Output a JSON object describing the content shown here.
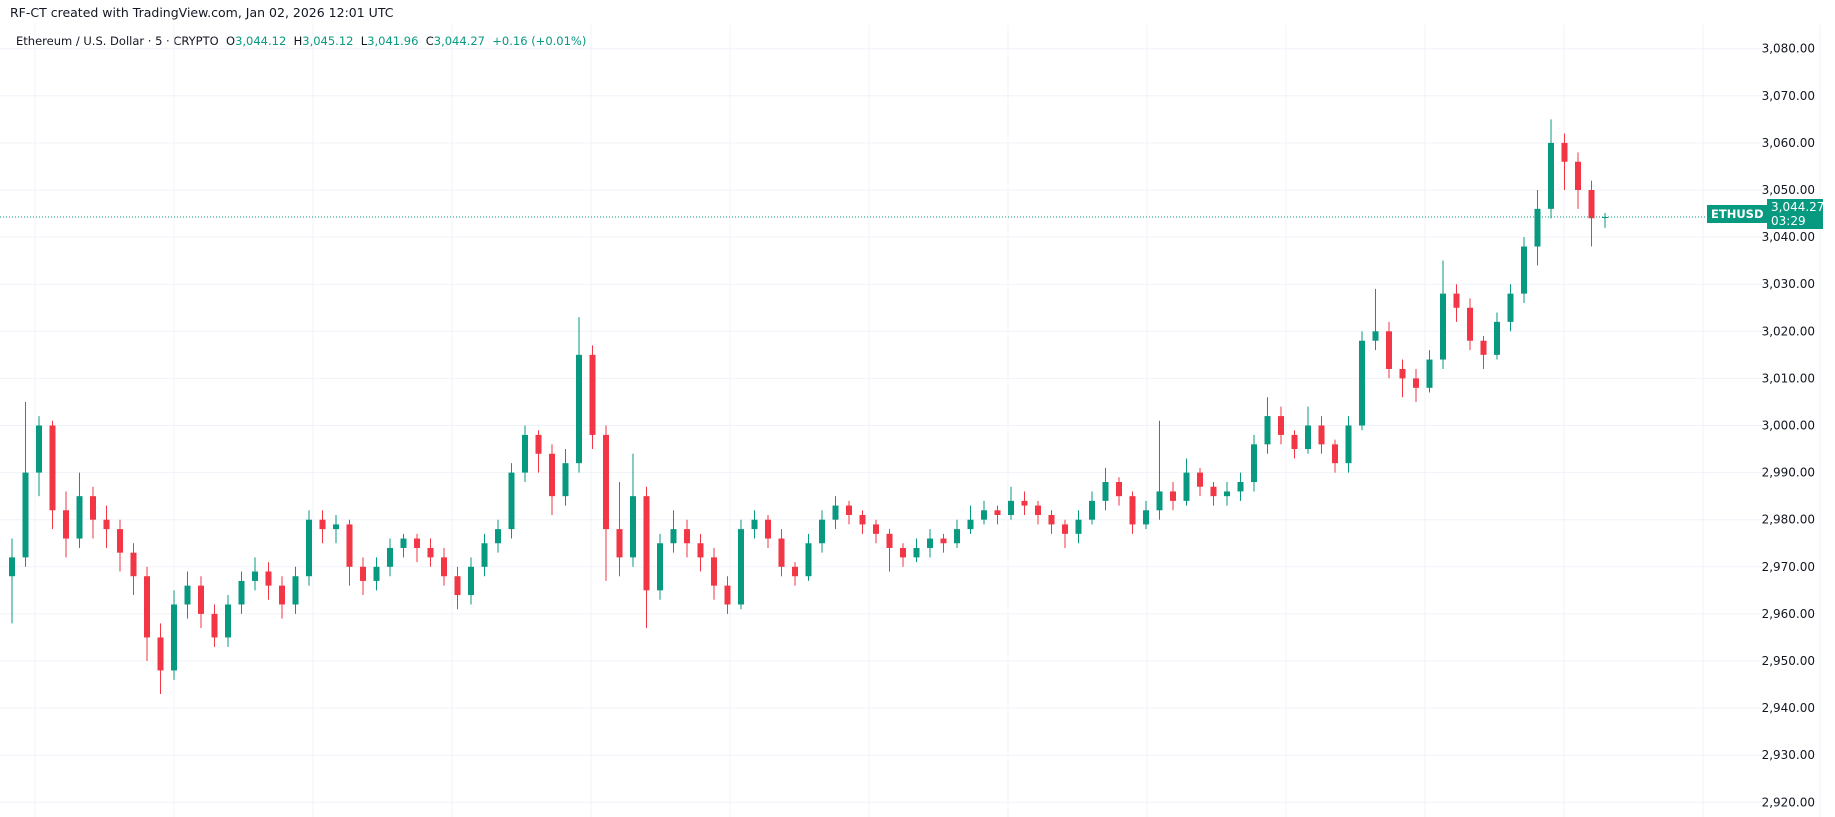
{
  "header": {
    "credit": "RF-CT created with TradingView.com, Jan 02, 2026 12:01 UTC"
  },
  "legend": {
    "symbol": "Ethereum / U.S. Dollar · 5 · CRYPTO",
    "o_label": "O",
    "o": "3,044.12",
    "h_label": "H",
    "h": "3,045.12",
    "l_label": "L",
    "l": "3,041.96",
    "c_label": "C",
    "c": "3,044.27",
    "change": "+0.16 (+0.01%)"
  },
  "price_tag": {
    "symbol": "ETHUSD",
    "price": "3,044.27",
    "countdown": "03:29"
  },
  "colors": {
    "up": "#089981",
    "down": "#f23645",
    "grid": "#f0f3fa"
  },
  "chart_data": {
    "type": "candlestick",
    "title": "Ethereum / U.S. Dollar · 5 · CRYPTO",
    "ylim": [
      2917,
      3086
    ],
    "yticks": [
      2920,
      2930,
      2940,
      2950,
      2960,
      2970,
      2980,
      2990,
      3000,
      3010,
      3020,
      3030,
      3040,
      3050,
      3060,
      3070,
      3080
    ],
    "ytick_labels": [
      "2,920.00",
      "2,930.00",
      "2,940.00",
      "2,950.00",
      "2,960.00",
      "2,970.00",
      "2,980.00",
      "2,990.00",
      "3,000.00",
      "3,010.00",
      "3,020.00",
      "3,030.00",
      "3,040.00",
      "3,050.00",
      "3,060.00",
      "3,070.00",
      "3,080.00"
    ],
    "last_price": 3044.27,
    "grid": true,
    "ohlc": [
      [
        2968,
        2976,
        2958,
        2972
      ],
      [
        2972,
        3005,
        2970,
        2990
      ],
      [
        2990,
        3002,
        2985,
        3000
      ],
      [
        3000,
        3001,
        2978,
        2982
      ],
      [
        2982,
        2986,
        2972,
        2976
      ],
      [
        2976,
        2990,
        2974,
        2985
      ],
      [
        2985,
        2987,
        2976,
        2980
      ],
      [
        2980,
        2983,
        2974,
        2978
      ],
      [
        2978,
        2980,
        2969,
        2973
      ],
      [
        2973,
        2975,
        2964,
        2968
      ],
      [
        2968,
        2970,
        2950,
        2955
      ],
      [
        2955,
        2958,
        2943,
        2948
      ],
      [
        2948,
        2965,
        2946,
        2962
      ],
      [
        2962,
        2969,
        2959,
        2966
      ],
      [
        2966,
        2968,
        2957,
        2960
      ],
      [
        2960,
        2962,
        2953,
        2955
      ],
      [
        2955,
        2964,
        2953,
        2962
      ],
      [
        2962,
        2969,
        2960,
        2967
      ],
      [
        2967,
        2972,
        2965,
        2969
      ],
      [
        2969,
        2971,
        2963,
        2966
      ],
      [
        2966,
        2968,
        2959,
        2962
      ],
      [
        2962,
        2970,
        2960,
        2968
      ],
      [
        2968,
        2982,
        2966,
        2980
      ],
      [
        2980,
        2982,
        2975,
        2978
      ],
      [
        2978,
        2981,
        2975,
        2979
      ],
      [
        2979,
        2980,
        2966,
        2970
      ],
      [
        2970,
        2972,
        2964,
        2967
      ],
      [
        2967,
        2972,
        2965,
        2970
      ],
      [
        2970,
        2976,
        2968,
        2974
      ],
      [
        2974,
        2977,
        2972,
        2976
      ],
      [
        2976,
        2977,
        2971,
        2974
      ],
      [
        2974,
        2976,
        2970,
        2972
      ],
      [
        2972,
        2974,
        2966,
        2968
      ],
      [
        2968,
        2970,
        2961,
        2964
      ],
      [
        2964,
        2972,
        2962,
        2970
      ],
      [
        2970,
        2977,
        2968,
        2975
      ],
      [
        2975,
        2980,
        2973,
        2978
      ],
      [
        2978,
        2992,
        2976,
        2990
      ],
      [
        2990,
        3000,
        2988,
        2998
      ],
      [
        2998,
        2999,
        2990,
        2994
      ],
      [
        2994,
        2996,
        2981,
        2985
      ],
      [
        2985,
        2995,
        2983,
        2992
      ],
      [
        2992,
        3023,
        2990,
        3015
      ],
      [
        3015,
        3017,
        2995,
        2998
      ],
      [
        2998,
        3000,
        2967,
        2978
      ],
      [
        2978,
        2988,
        2968,
        2972
      ],
      [
        2972,
        2994,
        2970,
        2985
      ],
      [
        2985,
        2987,
        2957,
        2965
      ],
      [
        2965,
        2977,
        2963,
        2975
      ],
      [
        2975,
        2982,
        2973,
        2978
      ],
      [
        2978,
        2980,
        2972,
        2975
      ],
      [
        2975,
        2977,
        2969,
        2972
      ],
      [
        2972,
        2974,
        2963,
        2966
      ],
      [
        2966,
        2968,
        2960,
        2962
      ],
      [
        2962,
        2980,
        2961,
        2978
      ],
      [
        2978,
        2982,
        2976,
        2980
      ],
      [
        2980,
        2981,
        2974,
        2976
      ],
      [
        2976,
        2978,
        2968,
        2970
      ],
      [
        2970,
        2971,
        2966,
        2968
      ],
      [
        2968,
        2977,
        2967,
        2975
      ],
      [
        2975,
        2982,
        2973,
        2980
      ],
      [
        2980,
        2985,
        2978,
        2983
      ],
      [
        2983,
        2984,
        2979,
        2981
      ],
      [
        2981,
        2982,
        2977,
        2979
      ],
      [
        2979,
        2980,
        2975,
        2977
      ],
      [
        2977,
        2978,
        2969,
        2974
      ],
      [
        2974,
        2975,
        2970,
        2972
      ],
      [
        2972,
        2976,
        2971,
        2974
      ],
      [
        2974,
        2978,
        2972,
        2976
      ],
      [
        2976,
        2977,
        2973,
        2975
      ],
      [
        2975,
        2980,
        2974,
        2978
      ],
      [
        2978,
        2983,
        2977,
        2980
      ],
      [
        2980,
        2984,
        2979,
        2982
      ],
      [
        2982,
        2983,
        2979,
        2981
      ],
      [
        2981,
        2987,
        2980,
        2984
      ],
      [
        2984,
        2986,
        2981,
        2983
      ],
      [
        2983,
        2984,
        2979,
        2981
      ],
      [
        2981,
        2982,
        2977,
        2979
      ],
      [
        2979,
        2980,
        2974,
        2977
      ],
      [
        2977,
        2982,
        2975,
        2980
      ],
      [
        2980,
        2986,
        2979,
        2984
      ],
      [
        2984,
        2991,
        2982,
        2988
      ],
      [
        2988,
        2989,
        2983,
        2985
      ],
      [
        2985,
        2986,
        2977,
        2979
      ],
      [
        2979,
        2984,
        2978,
        2982
      ],
      [
        2982,
        3001,
        2980,
        2986
      ],
      [
        2986,
        2988,
        2982,
        2984
      ],
      [
        2984,
        2993,
        2983,
        2990
      ],
      [
        2990,
        2991,
        2985,
        2987
      ],
      [
        2987,
        2988,
        2983,
        2985
      ],
      [
        2985,
        2988,
        2983,
        2986
      ],
      [
        2986,
        2990,
        2984,
        2988
      ],
      [
        2988,
        2998,
        2986,
        2996
      ],
      [
        2996,
        3006,
        2994,
        3002
      ],
      [
        3002,
        3004,
        2996,
        2998
      ],
      [
        2998,
        2999,
        2993,
        2995
      ],
      [
        2995,
        3004,
        2994,
        3000
      ],
      [
        3000,
        3002,
        2994,
        2996
      ],
      [
        2996,
        2997,
        2990,
        2992
      ],
      [
        2992,
        3002,
        2990,
        3000
      ],
      [
        3000,
        3020,
        2999,
        3018
      ],
      [
        3018,
        3029,
        3016,
        3020
      ],
      [
        3020,
        3022,
        3010,
        3012
      ],
      [
        3012,
        3014,
        3006,
        3010
      ],
      [
        3010,
        3012,
        3005,
        3008
      ],
      [
        3008,
        3016,
        3007,
        3014
      ],
      [
        3014,
        3035,
        3012,
        3028
      ],
      [
        3028,
        3030,
        3022,
        3025
      ],
      [
        3025,
        3027,
        3016,
        3018
      ],
      [
        3018,
        3019,
        3012,
        3015
      ],
      [
        3015,
        3024,
        3014,
        3022
      ],
      [
        3022,
        3030,
        3020,
        3028
      ],
      [
        3028,
        3040,
        3026,
        3038
      ],
      [
        3038,
        3050,
        3034,
        3046
      ],
      [
        3046,
        3065,
        3044,
        3060
      ],
      [
        3060,
        3062,
        3050,
        3056
      ],
      [
        3056,
        3058,
        3046,
        3050
      ],
      [
        3050,
        3052,
        3038,
        3044
      ],
      [
        3044.12,
        3045.12,
        3041.96,
        3044.27
      ]
    ]
  }
}
